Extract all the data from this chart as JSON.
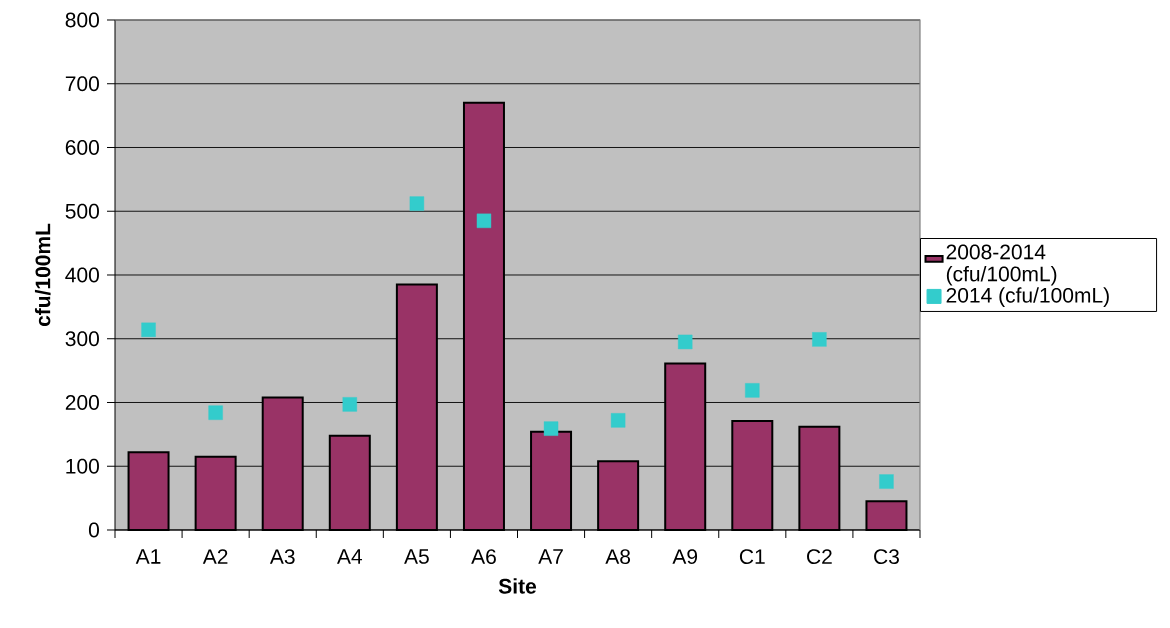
{
  "chart_data": {
    "type": "bar",
    "xlabel": "Site",
    "ylabel": "cfu/100mL",
    "categories": [
      "A1",
      "A2",
      "A3",
      "A4",
      "A5",
      "A6",
      "A7",
      "A8",
      "A9",
      "C1",
      "C2",
      "C3"
    ],
    "series": [
      {
        "name": "2008-2014 (cfu/100mL)",
        "color": "#993366",
        "values": [
          122,
          115,
          208,
          148,
          385,
          670,
          154,
          108,
          261,
          171,
          162,
          45
        ]
      },
      {
        "name": "2014 (cfu/100mL)",
        "type": "scatter",
        "color": "#33cccc",
        "values": [
          314,
          184,
          null,
          197,
          512,
          485,
          159,
          172,
          295,
          219,
          299,
          76
        ]
      }
    ],
    "ylim": [
      0,
      800
    ],
    "yticks": [
      0,
      100,
      200,
      300,
      400,
      500,
      600,
      700,
      800
    ],
    "grid": "y",
    "legend": "right",
    "marker": "square"
  }
}
